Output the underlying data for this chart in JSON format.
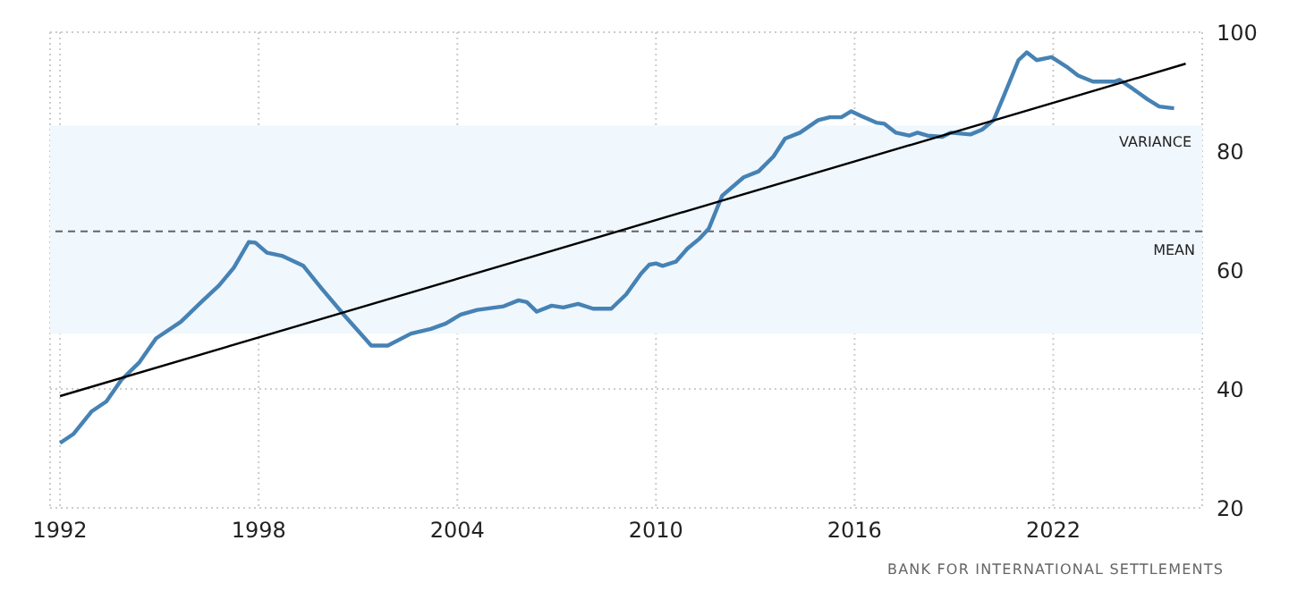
{
  "chart_data": {
    "type": "line",
    "x": [
      1992.0,
      1992.4,
      1992.95,
      1993.4,
      1993.85,
      1994.4,
      1994.9,
      1995.65,
      1996.3,
      1996.8,
      1997.25,
      1997.7,
      1997.9,
      1998.25,
      1998.7,
      1999.35,
      1999.9,
      2000.6,
      2001.4,
      2001.9,
      2002.6,
      2003.2,
      2003.65,
      2004.1,
      2004.6,
      2005.4,
      2005.85,
      2006.1,
      2006.4,
      2006.85,
      2007.2,
      2007.65,
      2008.1,
      2008.65,
      2009.1,
      2009.55,
      2009.8,
      2010.0,
      2010.2,
      2010.6,
      2010.95,
      2011.3,
      2011.6,
      2012.0,
      2012.65,
      2013.1,
      2013.55,
      2013.9,
      2014.35,
      2014.9,
      2015.25,
      2015.6,
      2015.9,
      2016.2,
      2016.65,
      2016.9,
      2017.25,
      2017.65,
      2017.9,
      2018.2,
      2018.65,
      2018.9,
      2019.5,
      2019.85,
      2020.2,
      2020.5,
      2020.95,
      2021.2,
      2021.5,
      2021.95,
      2022.4,
      2022.75,
      2023.2,
      2023.85,
      2024.0,
      2024.4,
      2024.85,
      2025.2,
      2025.65
    ],
    "series": [
      {
        "color": "#4682b4",
        "values": [
          30.9,
          32.4,
          36.2,
          37.9,
          41.5,
          44.5,
          48.5,
          51.3,
          54.8,
          57.4,
          60.4,
          64.7,
          64.6,
          62.9,
          62.4,
          60.7,
          56.9,
          52.3,
          47.3,
          47.3,
          49.3,
          50.1,
          51.0,
          52.5,
          53.3,
          53.9,
          54.9,
          54.6,
          53.0,
          54.0,
          53.7,
          54.3,
          53.5,
          53.5,
          55.9,
          59.4,
          60.9,
          61.1,
          60.7,
          61.4,
          63.6,
          65.2,
          67.0,
          72.5,
          75.6,
          76.6,
          79.1,
          82.1,
          83.1,
          85.2,
          85.7,
          85.7,
          86.7,
          85.9,
          84.8,
          84.6,
          83.1,
          82.6,
          83.1,
          82.6,
          82.4,
          83.1,
          82.8,
          83.6,
          85.2,
          89.2,
          95.3,
          96.6,
          95.3,
          95.8,
          94.2,
          92.7,
          91.7,
          91.7,
          92.0,
          90.5,
          88.7,
          87.5,
          87.2
        ]
      },
      {
        "type": "line",
        "color": "#000000",
        "x": [
          1992.0,
          2026.0
        ],
        "values": [
          38.8,
          94.7
        ]
      }
    ],
    "xlim": [
      1991.7,
      2026.5
    ],
    "xticks": [
      1992,
      1998,
      2004,
      2010,
      2016,
      2022
    ],
    "ylim": [
      20,
      100
    ],
    "yticks": [
      20,
      40,
      60,
      80,
      100
    ],
    "grid": true,
    "bands": [
      {
        "axis": "y",
        "from": 49.3,
        "to": 84.3,
        "label": "VARIANCE",
        "color": "#f0f7fd"
      }
    ],
    "ref_lines": [
      {
        "axis": "y",
        "value": 66.5,
        "label": "MEAN",
        "color": "#666666",
        "line_style": "dashed"
      }
    ],
    "annotations": [
      "BANK FOR INTERNATIONAL SETTLEMENTS"
    ]
  }
}
